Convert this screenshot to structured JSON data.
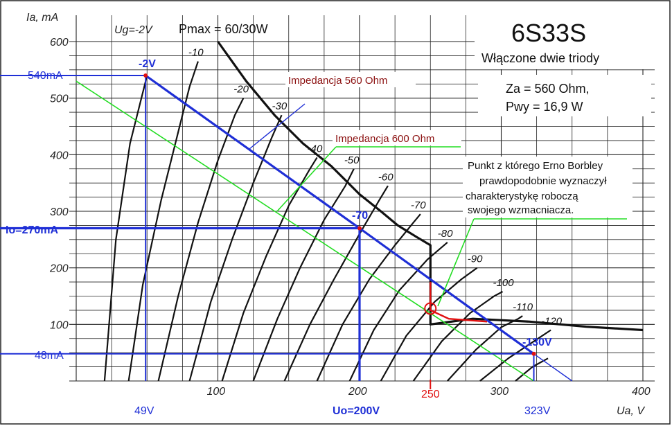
{
  "chart_data": {
    "type": "line",
    "title": "6S33S",
    "subtitle": "Włączone dwie triody",
    "xlabel": "Ua, V",
    "ylabel": "Ia, mA",
    "xlim": [
      0,
      400
    ],
    "ylim": [
      0,
      600
    ],
    "x_ticks": [
      "100",
      "200",
      "300",
      "400"
    ],
    "y_ticks": [
      "100",
      "200",
      "300",
      "400",
      "500",
      "600"
    ],
    "grid": true,
    "legend_text": "Ug=-2V",
    "pmax_label": "Pmax = 60/30W",
    "spec_lines": [
      "Za = 560 Ohm,",
      "Pwy = 16,9 W"
    ],
    "curves": [
      {
        "label": "-2V",
        "points": [
          [
            20,
            0
          ],
          [
            28,
            250
          ],
          [
            38,
            420
          ],
          [
            50,
            540
          ]
        ]
      },
      {
        "label": "-10",
        "points": [
          [
            37,
            0
          ],
          [
            47,
            170
          ],
          [
            60,
            320
          ],
          [
            72,
            440
          ],
          [
            80,
            520
          ],
          [
            86,
            565
          ]
        ]
      },
      {
        "label": "-20",
        "points": [
          [
            58,
            0
          ],
          [
            72,
            150
          ],
          [
            86,
            280
          ],
          [
            100,
            390
          ],
          [
            112,
            470
          ],
          [
            118,
            500
          ]
        ]
      },
      {
        "label": "-30",
        "points": [
          [
            80,
            0
          ],
          [
            95,
            140
          ],
          [
            110,
            250
          ],
          [
            125,
            350
          ],
          [
            138,
            430
          ],
          [
            145,
            470
          ]
        ]
      },
      {
        "label": "-40",
        "points": [
          [
            103,
            0
          ],
          [
            118,
            120
          ],
          [
            134,
            220
          ],
          [
            150,
            310
          ],
          [
            165,
            375
          ],
          [
            170,
            395
          ]
        ]
      },
      {
        "label": "-50",
        "points": [
          [
            125,
            0
          ],
          [
            142,
            110
          ],
          [
            158,
            200
          ],
          [
            175,
            285
          ],
          [
            190,
            345
          ],
          [
            196,
            375
          ]
        ]
      },
      {
        "label": "-60",
        "points": [
          [
            147,
            0
          ],
          [
            165,
            100
          ],
          [
            182,
            180
          ],
          [
            200,
            260
          ],
          [
            214,
            320
          ],
          [
            220,
            345
          ]
        ]
      },
      {
        "label": "-70",
        "points": [
          [
            170,
            0
          ],
          [
            188,
            100
          ],
          [
            207,
            180
          ],
          [
            225,
            240
          ],
          [
            238,
            280
          ],
          [
            243,
            295
          ]
        ]
      },
      {
        "label": "-80",
        "points": [
          [
            193,
            0
          ],
          [
            210,
            90
          ],
          [
            228,
            160
          ],
          [
            248,
            215
          ],
          [
            262,
            245
          ]
        ]
      },
      {
        "label": "-90",
        "points": [
          [
            215,
            0
          ],
          [
            233,
            80
          ],
          [
            253,
            140
          ],
          [
            272,
            180
          ],
          [
            283,
            200
          ]
        ]
      },
      {
        "label": "-100",
        "points": [
          [
            238,
            0
          ],
          [
            258,
            70
          ],
          [
            278,
            120
          ],
          [
            295,
            150
          ],
          [
            301,
            158
          ]
        ]
      },
      {
        "label": "-110",
        "points": [
          [
            262,
            0
          ],
          [
            282,
            55
          ],
          [
            300,
            95
          ],
          [
            312,
            110
          ],
          [
            315,
            115
          ]
        ]
      },
      {
        "label": "-120",
        "points": [
          [
            285,
            0
          ],
          [
            305,
            40
          ],
          [
            323,
            70
          ],
          [
            335,
            90
          ]
        ]
      },
      {
        "label": "-130V",
        "points": [
          [
            310,
            0
          ],
          [
            322,
            25
          ],
          [
            333,
            40
          ]
        ]
      }
    ],
    "pmax_curve": {
      "points": [
        [
          100,
          600
        ],
        [
          120,
          530
        ],
        [
          140,
          470
        ],
        [
          160,
          420
        ],
        [
          180,
          380
        ],
        [
          200,
          330
        ],
        [
          215,
          300
        ],
        [
          227,
          275
        ],
        [
          240,
          255
        ],
        [
          250,
          240
        ],
        [
          250,
          100
        ],
        [
          280,
          110
        ],
        [
          320,
          105
        ],
        [
          360,
          96
        ],
        [
          400,
          90
        ]
      ]
    },
    "load_line_560": {
      "label": "Impedancja 560 Ohm",
      "points": [
        [
          49,
          540
        ],
        [
          200,
          270
        ],
        [
          323,
          48
        ],
        [
          350,
          0
        ]
      ]
    },
    "load_line_600": {
      "label": "Impedancja 600 Ohm",
      "points": [
        [
          0,
          530
        ],
        [
          323,
          0
        ]
      ]
    },
    "working_point_red": {
      "label": "250",
      "points": [
        [
          250,
          175
        ],
        [
          250,
          125
        ],
        [
          263,
          110
        ],
        [
          290,
          105
        ]
      ]
    },
    "circle_point": [
      250,
      128
    ],
    "operating_point": {
      "Uo": "Uo=200V",
      "Io": "Io=270mA",
      "x": 200,
      "y": 270
    },
    "max_point": {
      "label": "-2V",
      "x": 49,
      "y": 540,
      "Ulabel": "49V",
      "Ilabel": "540mA"
    },
    "min_point": {
      "label": "-130V",
      "x": 323,
      "y": 48,
      "Ulabel": "323V",
      "Ilabel": "48mA"
    },
    "annotation": [
      "Punkt z którego Erno Borbley",
      "prawdopodobnie  wyznaczył",
      "charakterystykę roboczą",
      "swojego wzmacniacza."
    ]
  },
  "colors": {
    "blue": "#1f2fd6",
    "green": "#22dd22",
    "red": "#e01010",
    "black": "#111111"
  }
}
